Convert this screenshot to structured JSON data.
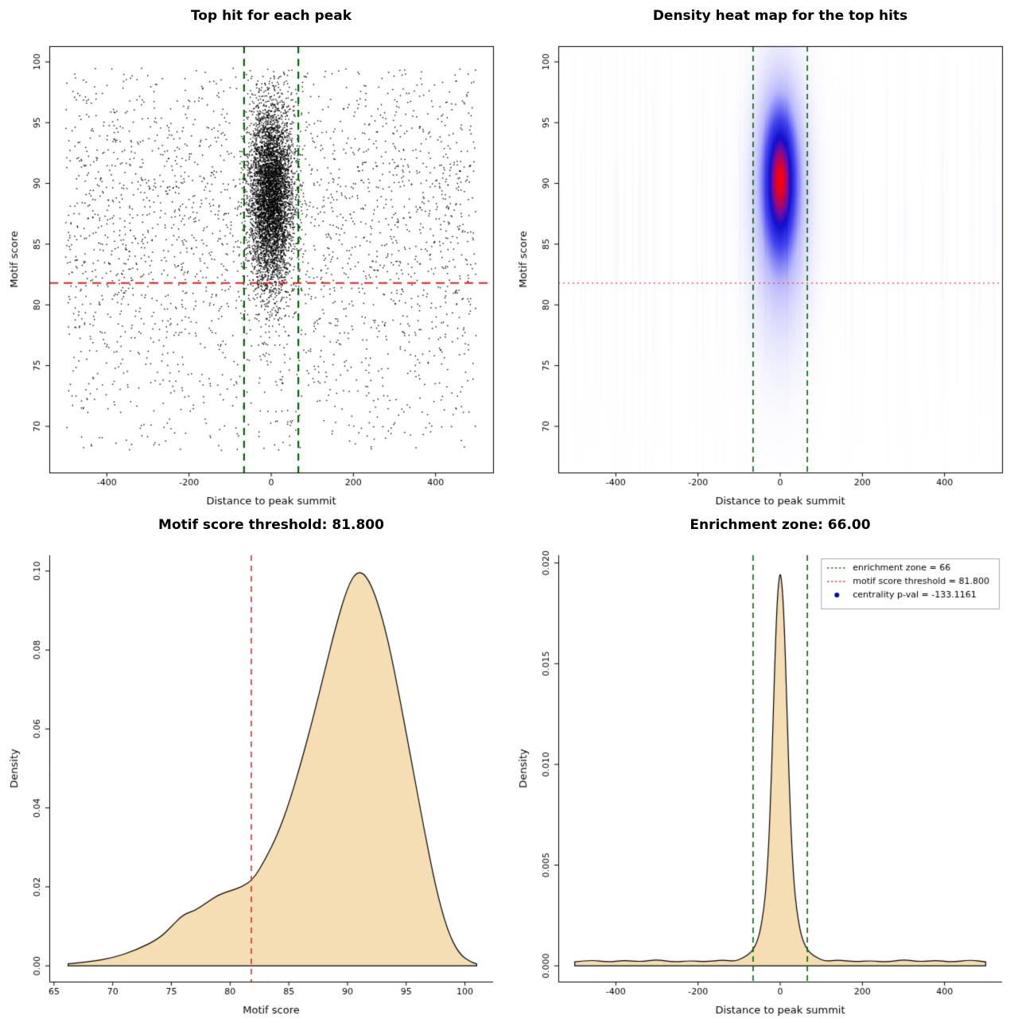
{
  "chart_data": [
    {
      "type": "scatter",
      "title": "Top hit for each peak",
      "xlabel": "Distance to peak summit",
      "ylabel": "Motif score",
      "xlim": [
        -500,
        500
      ],
      "ylim": [
        67.5,
        100
      ],
      "xticks": [
        -400,
        -200,
        0,
        200,
        400
      ],
      "xtick_labels": [
        "-400",
        "-200",
        "0",
        "200",
        "400"
      ],
      "yticks": [
        70,
        75,
        80,
        85,
        90,
        95,
        100
      ],
      "ytick_labels": [
        "70",
        "75",
        "80",
        "85",
        "90",
        "95",
        "100"
      ],
      "box": true,
      "enrichment_zone_x": [
        -66,
        66
      ],
      "zone_line_color": "#006400",
      "score_threshold_y": 81.8,
      "threshold_line_color": "#dd2222",
      "point_color": "#000000",
      "points": {
        "cluster": {
          "n": 5200,
          "x_mean": 0,
          "x_sd": 26,
          "y_mean": 89,
          "y_sd": 3.8,
          "seed": 101
        },
        "background": {
          "n": 2600,
          "x_min": -500,
          "x_max": 500,
          "y_mean": 86.5,
          "y_sd": 6.8,
          "seed": 202
        }
      }
    },
    {
      "type": "heatmap",
      "title": "Density heat map for the top hits",
      "xlabel": "Distance to peak summit",
      "ylabel": "Motif score",
      "xlim": [
        -500,
        500
      ],
      "ylim": [
        67.5,
        100
      ],
      "xticks": [
        -400,
        -200,
        0,
        200,
        400
      ],
      "xtick_labels": [
        "-400",
        "-200",
        "0",
        "200",
        "400"
      ],
      "yticks": [
        70,
        75,
        80,
        85,
        90,
        95,
        100
      ],
      "ytick_labels": [
        "70",
        "75",
        "80",
        "85",
        "90",
        "95",
        "100"
      ],
      "box": true,
      "enrichment_zone_x": [
        -66,
        66
      ],
      "zone_line_color": "#006400",
      "score_threshold_y": 81.8,
      "threshold_line_color": "#ff3333",
      "density": {
        "main": {
          "x_mean": 0,
          "x_sd": 30,
          "y_mean": 90.5,
          "y_sd": 4.2
        },
        "halo": {
          "weight": 0.45,
          "x_sd": 46,
          "y_mean": 88,
          "y_sd": 7.5
        },
        "streak": {
          "y_mean": 86.5,
          "y_sd": 9,
          "threshold": 0.88,
          "gain": 0.75,
          "seed": 7
        },
        "max": 1.43
      },
      "colormap": [
        [
          0.0,
          [
            255,
            255,
            255
          ]
        ],
        [
          0.3,
          [
            185,
            185,
            250
          ]
        ],
        [
          0.55,
          [
            70,
            70,
            240
          ]
        ],
        [
          0.75,
          [
            15,
            15,
            205
          ]
        ],
        [
          0.86,
          [
            120,
            10,
            160
          ]
        ],
        [
          1.0,
          [
            255,
            0,
            0
          ]
        ]
      ]
    },
    {
      "type": "area",
      "title": "Motif score threshold: 81.800",
      "xlabel": "Motif score",
      "ylabel": "Density",
      "xlim": [
        66,
        101
      ],
      "ylim": [
        0,
        0.1
      ],
      "xticks": [
        65,
        70,
        75,
        80,
        85,
        90,
        95,
        100
      ],
      "xtick_labels": [
        "65",
        "70",
        "75",
        "80",
        "85",
        "90",
        "95",
        "100"
      ],
      "yticks": [
        0.0,
        0.02,
        0.04,
        0.06,
        0.08,
        0.1
      ],
      "ytick_labels": [
        "0.00",
        "0.02",
        "0.04",
        "0.06",
        "0.08",
        "0.10"
      ],
      "box": false,
      "fill": "#f5deb3",
      "stroke": "#000000",
      "threshold_x": 81.8,
      "threshold_color": "#cc3333",
      "curve": [
        [
          66.2,
          0.0005
        ],
        [
          68,
          0.001
        ],
        [
          70,
          0.002
        ],
        [
          72,
          0.004
        ],
        [
          74,
          0.007
        ],
        [
          75,
          0.01
        ],
        [
          76,
          0.013
        ],
        [
          77,
          0.014
        ],
        [
          78,
          0.016
        ],
        [
          79,
          0.018
        ],
        [
          80,
          0.019
        ],
        [
          81,
          0.02
        ],
        [
          82,
          0.022
        ],
        [
          83,
          0.027
        ],
        [
          84,
          0.033
        ],
        [
          85,
          0.041
        ],
        [
          86,
          0.051
        ],
        [
          87,
          0.062
        ],
        [
          88,
          0.074
        ],
        [
          89,
          0.086
        ],
        [
          90,
          0.096
        ],
        [
          90.8,
          0.1
        ],
        [
          91.6,
          0.099
        ],
        [
          92.5,
          0.093
        ],
        [
          93.5,
          0.082
        ],
        [
          94.5,
          0.067
        ],
        [
          95.5,
          0.051
        ],
        [
          96.5,
          0.035
        ],
        [
          97.5,
          0.02
        ],
        [
          98.5,
          0.009
        ],
        [
          99.5,
          0.003
        ],
        [
          100.5,
          0.001
        ],
        [
          101,
          0.0005
        ]
      ]
    },
    {
      "type": "area",
      "title": "Enrichment zone: 66.00",
      "xlabel": "Distance to peak summit",
      "ylabel": "Density",
      "xlim": [
        -500,
        500
      ],
      "ylim": [
        0,
        0.0196
      ],
      "xticks": [
        -400,
        -200,
        0,
        200,
        400
      ],
      "xtick_labels": [
        "-400",
        "-200",
        "0",
        "200",
        "400"
      ],
      "yticks": [
        0.0,
        0.005,
        0.01,
        0.015,
        0.02
      ],
      "ytick_labels": [
        "0.000",
        "0.005",
        "0.010",
        "0.015",
        "0.020"
      ],
      "box": false,
      "fill": "#f5deb3",
      "stroke": "#000000",
      "enrichment_zone_x": [
        -66,
        66
      ],
      "zone_line_color": "#006400",
      "curve": [
        [
          -500,
          0.0002
        ],
        [
          -460,
          0.0003
        ],
        [
          -420,
          0.00018
        ],
        [
          -380,
          0.00028
        ],
        [
          -340,
          0.0002
        ],
        [
          -300,
          0.00032
        ],
        [
          -260,
          0.00018
        ],
        [
          -220,
          0.00026
        ],
        [
          -180,
          0.0002
        ],
        [
          -140,
          0.0003
        ],
        [
          -110,
          0.00022
        ],
        [
          -90,
          0.0004
        ],
        [
          -75,
          0.0006
        ],
        [
          -66,
          0.0008
        ],
        [
          -56,
          0.0012
        ],
        [
          -48,
          0.0018
        ],
        [
          -40,
          0.0028
        ],
        [
          -34,
          0.004
        ],
        [
          -28,
          0.006
        ],
        [
          -23,
          0.0085
        ],
        [
          -19,
          0.011
        ],
        [
          -15,
          0.0138
        ],
        [
          -11,
          0.0163
        ],
        [
          -7,
          0.0182
        ],
        [
          -3,
          0.0192
        ],
        [
          0,
          0.0195
        ],
        [
          3,
          0.0192
        ],
        [
          7,
          0.0182
        ],
        [
          11,
          0.0163
        ],
        [
          15,
          0.0138
        ],
        [
          19,
          0.011
        ],
        [
          23,
          0.0085
        ],
        [
          28,
          0.006
        ],
        [
          34,
          0.004
        ],
        [
          40,
          0.0028
        ],
        [
          48,
          0.0018
        ],
        [
          56,
          0.0012
        ],
        [
          66,
          0.0008
        ],
        [
          75,
          0.0006
        ],
        [
          90,
          0.0004
        ],
        [
          110,
          0.00022
        ],
        [
          140,
          0.0003
        ],
        [
          180,
          0.0002
        ],
        [
          220,
          0.00026
        ],
        [
          260,
          0.00018
        ],
        [
          300,
          0.00032
        ],
        [
          340,
          0.0002
        ],
        [
          380,
          0.00028
        ],
        [
          420,
          0.00018
        ],
        [
          460,
          0.0003
        ],
        [
          500,
          0.0002
        ]
      ],
      "legend": {
        "items": [
          {
            "type": "dotted-line",
            "color": "#006400",
            "label": "enrichment zone = 66"
          },
          {
            "type": "dotted-line",
            "color": "#dd2222",
            "label": "motif score threshold = 81.800"
          },
          {
            "type": "point",
            "color": "#0000cd",
            "label": "centrality p-val = -133.1161"
          }
        ]
      }
    }
  ]
}
